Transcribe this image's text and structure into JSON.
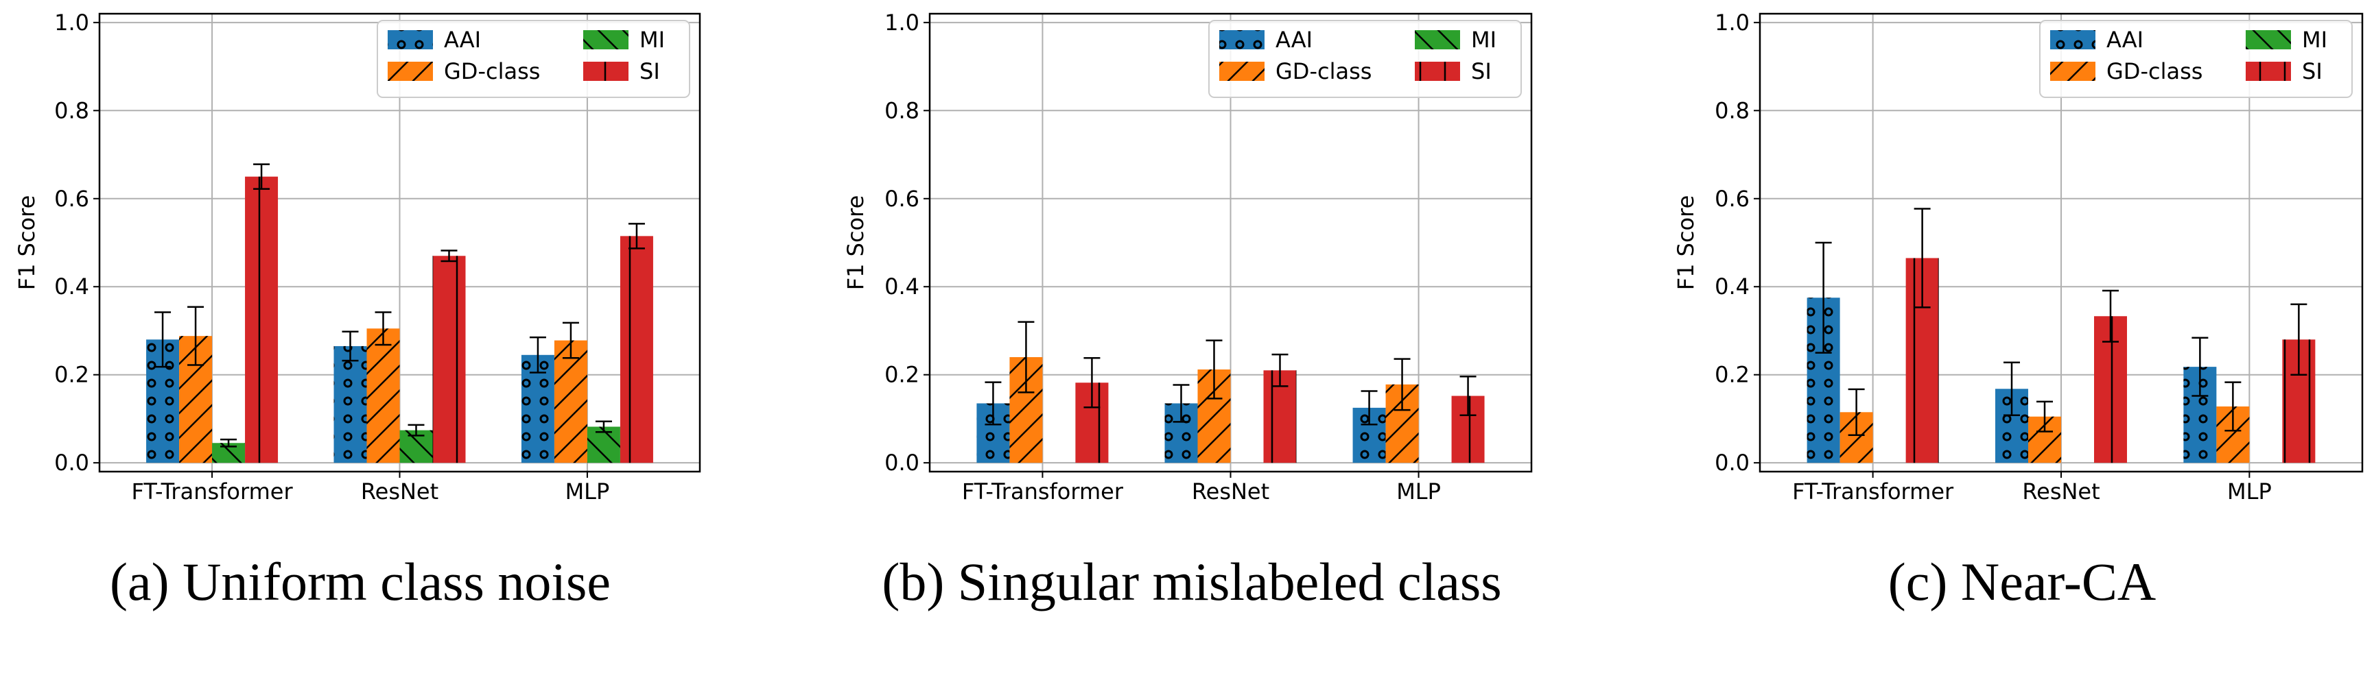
{
  "figure": {
    "legend_items": [
      {
        "label": "AAI",
        "color": "#1f77b4",
        "hatch": "circles"
      },
      {
        "label": "GD-class",
        "color": "#ff7f0e",
        "hatch": "slash"
      },
      {
        "label": "MI",
        "color": "#2ca02c",
        "hatch": "backslash"
      },
      {
        "label": "SI",
        "color": "#d62728",
        "hatch": "vertical"
      }
    ]
  },
  "chart_data": [
    {
      "type": "bar",
      "caption": "(a) Uniform class noise",
      "ylabel": "F1 Score",
      "categories": [
        "FT-Transformer",
        "ResNet",
        "MLP"
      ],
      "ylim": [
        -0.02,
        1.02
      ],
      "yticks": [
        "0.0",
        "0.2",
        "0.4",
        "0.6",
        "0.8",
        "1.0"
      ],
      "grid": true,
      "legend": "top-right",
      "series": [
        {
          "name": "AAI",
          "values": [
            0.28,
            0.265,
            0.245
          ],
          "errors": [
            0.062,
            0.033,
            0.04
          ]
        },
        {
          "name": "GD-class",
          "values": [
            0.288,
            0.305,
            0.278
          ],
          "errors": [
            0.066,
            0.037,
            0.04
          ]
        },
        {
          "name": "MI",
          "values": [
            0.045,
            0.074,
            0.082
          ],
          "errors": [
            0.008,
            0.012,
            0.012
          ]
        },
        {
          "name": "SI",
          "values": [
            0.65,
            0.47,
            0.515
          ],
          "errors": [
            0.028,
            0.012,
            0.028
          ]
        }
      ]
    },
    {
      "type": "bar",
      "caption": "(b) Singular mislabeled class",
      "ylabel": "F1 Score",
      "categories": [
        "FT-Transformer",
        "ResNet",
        "MLP"
      ],
      "ylim": [
        -0.02,
        1.02
      ],
      "yticks": [
        "0.0",
        "0.2",
        "0.4",
        "0.6",
        "0.8",
        "1.0"
      ],
      "grid": true,
      "legend": "top-right",
      "series": [
        {
          "name": "AAI",
          "values": [
            0.135,
            0.135,
            0.125
          ],
          "errors": [
            0.048,
            0.042,
            0.038
          ]
        },
        {
          "name": "GD-class",
          "values": [
            0.24,
            0.212,
            0.178
          ],
          "errors": [
            0.08,
            0.066,
            0.058
          ]
        },
        {
          "name": "MI",
          "values": [
            0.0,
            0.0,
            0.0
          ],
          "errors": [
            0.0,
            0.0,
            0.0
          ]
        },
        {
          "name": "SI",
          "values": [
            0.182,
            0.21,
            0.152
          ],
          "errors": [
            0.056,
            0.036,
            0.044
          ]
        }
      ]
    },
    {
      "type": "bar",
      "caption": "(c) Near-CA",
      "ylabel": "F1 Score",
      "categories": [
        "FT-Transformer",
        "ResNet",
        "MLP"
      ],
      "ylim": [
        -0.02,
        1.02
      ],
      "yticks": [
        "0.0",
        "0.2",
        "0.4",
        "0.6",
        "0.8",
        "1.0"
      ],
      "grid": true,
      "legend": "top-right",
      "series": [
        {
          "name": "AAI",
          "values": [
            0.375,
            0.168,
            0.218
          ],
          "errors": [
            0.125,
            0.06,
            0.066
          ]
        },
        {
          "name": "GD-class",
          "values": [
            0.115,
            0.105,
            0.128
          ],
          "errors": [
            0.052,
            0.034,
            0.055
          ]
        },
        {
          "name": "MI",
          "values": [
            0.0,
            0.0,
            0.0
          ],
          "errors": [
            0.0,
            0.0,
            0.0
          ]
        },
        {
          "name": "SI",
          "values": [
            0.465,
            0.333,
            0.28
          ],
          "errors": [
            0.112,
            0.058,
            0.08
          ]
        }
      ]
    }
  ]
}
